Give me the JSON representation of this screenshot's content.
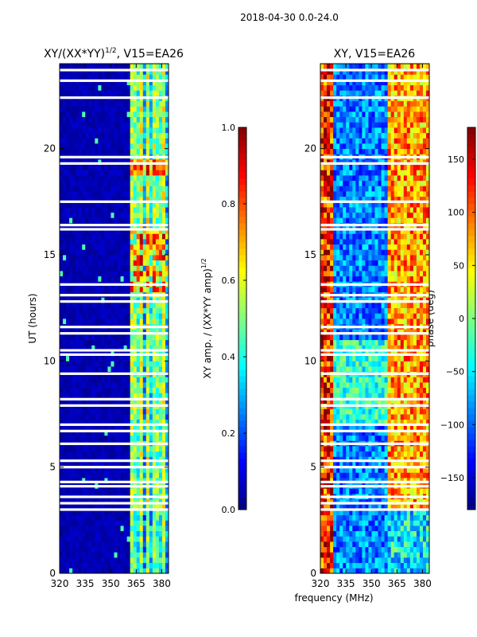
{
  "figure": {
    "title": "2018-04-30 0.0-24.0",
    "shared_xlabel": "frequency (MHz)"
  },
  "chart_data": [
    {
      "type": "heatmap",
      "title": "XY/(XX*YY)",
      "title_exponent": "1/2",
      "title_suffix": ", V15=EA26",
      "xlabel": "frequency (MHz)",
      "ylabel": "UT (hours)",
      "xlim": [
        320,
        384
      ],
      "ylim": [
        0,
        24
      ],
      "xticks": [
        320,
        335,
        350,
        365,
        380
      ],
      "yticks": [
        0,
        5,
        10,
        15,
        20
      ],
      "colorbar": {
        "label": "XY amp. / (XX*YY amp)",
        "label_exponent": "1/2",
        "range": [
          0.0,
          1.0
        ],
        "ticks": [
          "0.0",
          "0.2",
          "0.4",
          "0.6",
          "0.8",
          "1.0"
        ]
      },
      "colormap": [
        "#00007f",
        "#0000ff",
        "#007fff",
        "#00ffff",
        "#7fff7f",
        "#ffff00",
        "#ff7f00",
        "#ff0000",
        "#7f0000"
      ],
      "flagged_bands_hours": [
        3.0,
        3.3,
        3.6,
        4.1,
        4.3,
        5.0,
        5.3,
        6.1,
        6.7,
        7.0,
        7.9,
        8.2,
        9.4,
        10.3,
        10.5,
        11.3,
        11.6,
        12.8,
        13.1,
        13.6,
        16.2,
        16.4,
        17.5,
        19.3,
        19.6,
        22.4,
        23.2,
        23.7
      ],
      "notes": "Near-zero amplitude (dark blue) below ~362 MHz; bright vertical streaks (0.3-0.9) between ~362 and ~382 MHz, strongest around 13.5-16 UT and 19 UT."
    },
    {
      "type": "heatmap",
      "title": "XY, V15=EA26",
      "xlabel": "frequency (MHz)",
      "ylabel": "",
      "xlim": [
        320,
        384
      ],
      "ylim": [
        0,
        24
      ],
      "xticks": [
        320,
        335,
        350,
        365,
        380
      ],
      "yticks": [
        0,
        5,
        10,
        15,
        20
      ],
      "colorbar": {
        "label": "phase (deg)",
        "range": [
          -180,
          180
        ],
        "ticks": [
          "−150",
          "−100",
          "−50",
          "0",
          "50",
          "100",
          "150"
        ]
      },
      "colormap": [
        "#00007f",
        "#0000ff",
        "#007fff",
        "#00ffff",
        "#7fff7f",
        "#ffff00",
        "#ff7f00",
        "#ff0000",
        "#7f0000"
      ],
      "flagged_bands_hours": [
        3.0,
        3.3,
        3.6,
        4.1,
        4.3,
        5.0,
        5.3,
        6.1,
        6.7,
        7.0,
        7.9,
        8.2,
        9.4,
        10.3,
        10.5,
        11.3,
        11.6,
        12.8,
        13.1,
        13.6,
        16.2,
        16.4,
        17.5,
        19.3,
        19.6,
        22.4,
        23.2,
        23.7
      ],
      "notes": "Noisy phase; red/orange (high positive) at low frequency edge, cyan/blue (~-100 deg) in 335-360 MHz, yellow/orange (~+80 deg) above ~360 MHz."
    }
  ]
}
